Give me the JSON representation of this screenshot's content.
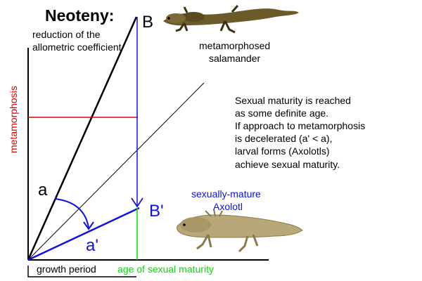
{
  "title": "Neoteny:",
  "subtitle_line1": "reduction of the",
  "subtitle_line2": "allometric coefficient",
  "label_b": "B",
  "label_b_prime": "B'",
  "label_a": "a",
  "label_a_prime": "a'",
  "y_axis_label": "metamorphosis",
  "x_axis_label_growth": "growth period",
  "x_axis_label_maturity": "age of sexual maturity",
  "salamander_caption_line1": "metamorphosed",
  "salamander_caption_line2": "salamander",
  "axolotl_caption_line1": "sexually-mature",
  "axolotl_caption_line2": "Axolotl",
  "explanation_lines": [
    "Sexual maturity is reached",
    "as some definite age.",
    "If approach to metamorphosis",
    "is decelerated (a' < a),",
    "larval forms (Axolotls)",
    "achieve sexual maturity."
  ],
  "colors": {
    "black": "#000000",
    "red": "#e00000",
    "blue": "#1010e0",
    "green": "#00dd00",
    "salamander": "#6b5a2a",
    "axolotl": "#b8a878"
  }
}
